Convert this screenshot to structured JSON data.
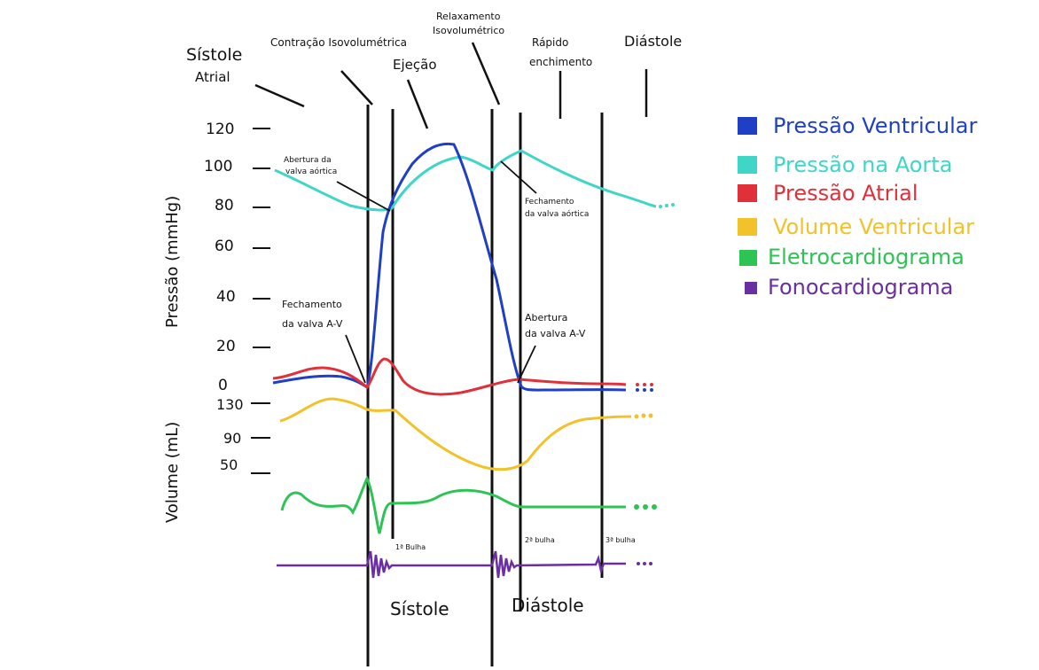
{
  "phases": {
    "sistole_atrial": "Sístole Atrial",
    "contracao": "Contração Isovolumétrica",
    "ejecao": "Ejeção",
    "relaxamento": "Relaxamento Isovolumétrico",
    "rapido_enchimento": "Rápido enchimento",
    "diastole": "Diástole"
  },
  "bottom_labels": {
    "sistole": "Sístole",
    "diastole": "Diástole"
  },
  "annotations": {
    "abertura_aortica": "Abertura da valva aórtica",
    "fechamento_aortica": "Fechamento da valva aórtica",
    "fechamento_av": "Fechamento da valva A-V",
    "abertura_av": "Abertura da valva A-V",
    "bulha1": "1ª Bulha",
    "bulha2": "2ª bulha",
    "bulha3": "3ª bulha"
  },
  "axes": {
    "pressure_label": "Pressão (mmHg)",
    "volume_label": "Volume (mL)",
    "pressure_ticks": [
      "120",
      "100",
      "80",
      "60",
      "40",
      "20",
      "0"
    ],
    "volume_ticks": [
      "130",
      "90",
      "50"
    ]
  },
  "legend": [
    {
      "label": "Pressão Ventricular",
      "color": "#1f3fc4"
    },
    {
      "label": "Pressão na Aorta",
      "color": "#3fd6c8"
    },
    {
      "label": "Pressão Atrial",
      "color": "#e0303a"
    },
    {
      "label": "Volume Ventricular",
      "color": "#f2c22a"
    },
    {
      "label": "Eletrocardiograma",
      "color": "#2ec455"
    },
    {
      "label": "Fonocardiograma",
      "color": "#6a2fa0"
    }
  ]
}
